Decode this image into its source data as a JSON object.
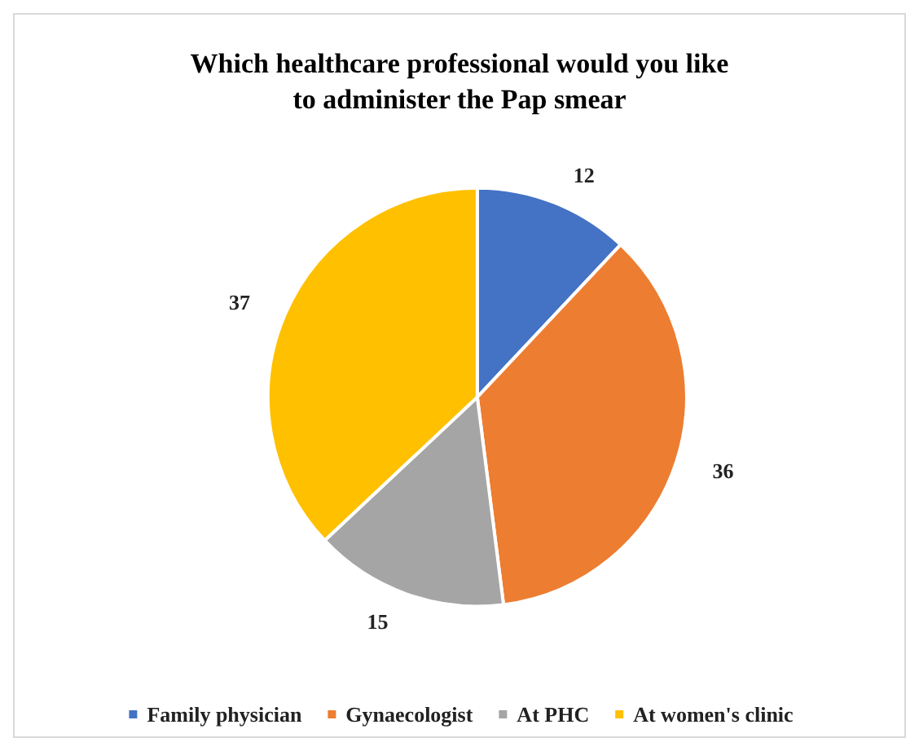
{
  "chart_data": {
    "type": "pie",
    "title": "Which healthcare professional would you like\nto administer the Pap smear",
    "categories": [
      "Family physician",
      "Gynaecologist",
      "At PHC",
      "At women's clinic"
    ],
    "values": [
      12,
      36,
      15,
      37
    ],
    "colors": [
      "#4472c4",
      "#ed7d31",
      "#a5a5a5",
      "#ffc000"
    ],
    "data_labels": true,
    "legend": "bottom"
  }
}
